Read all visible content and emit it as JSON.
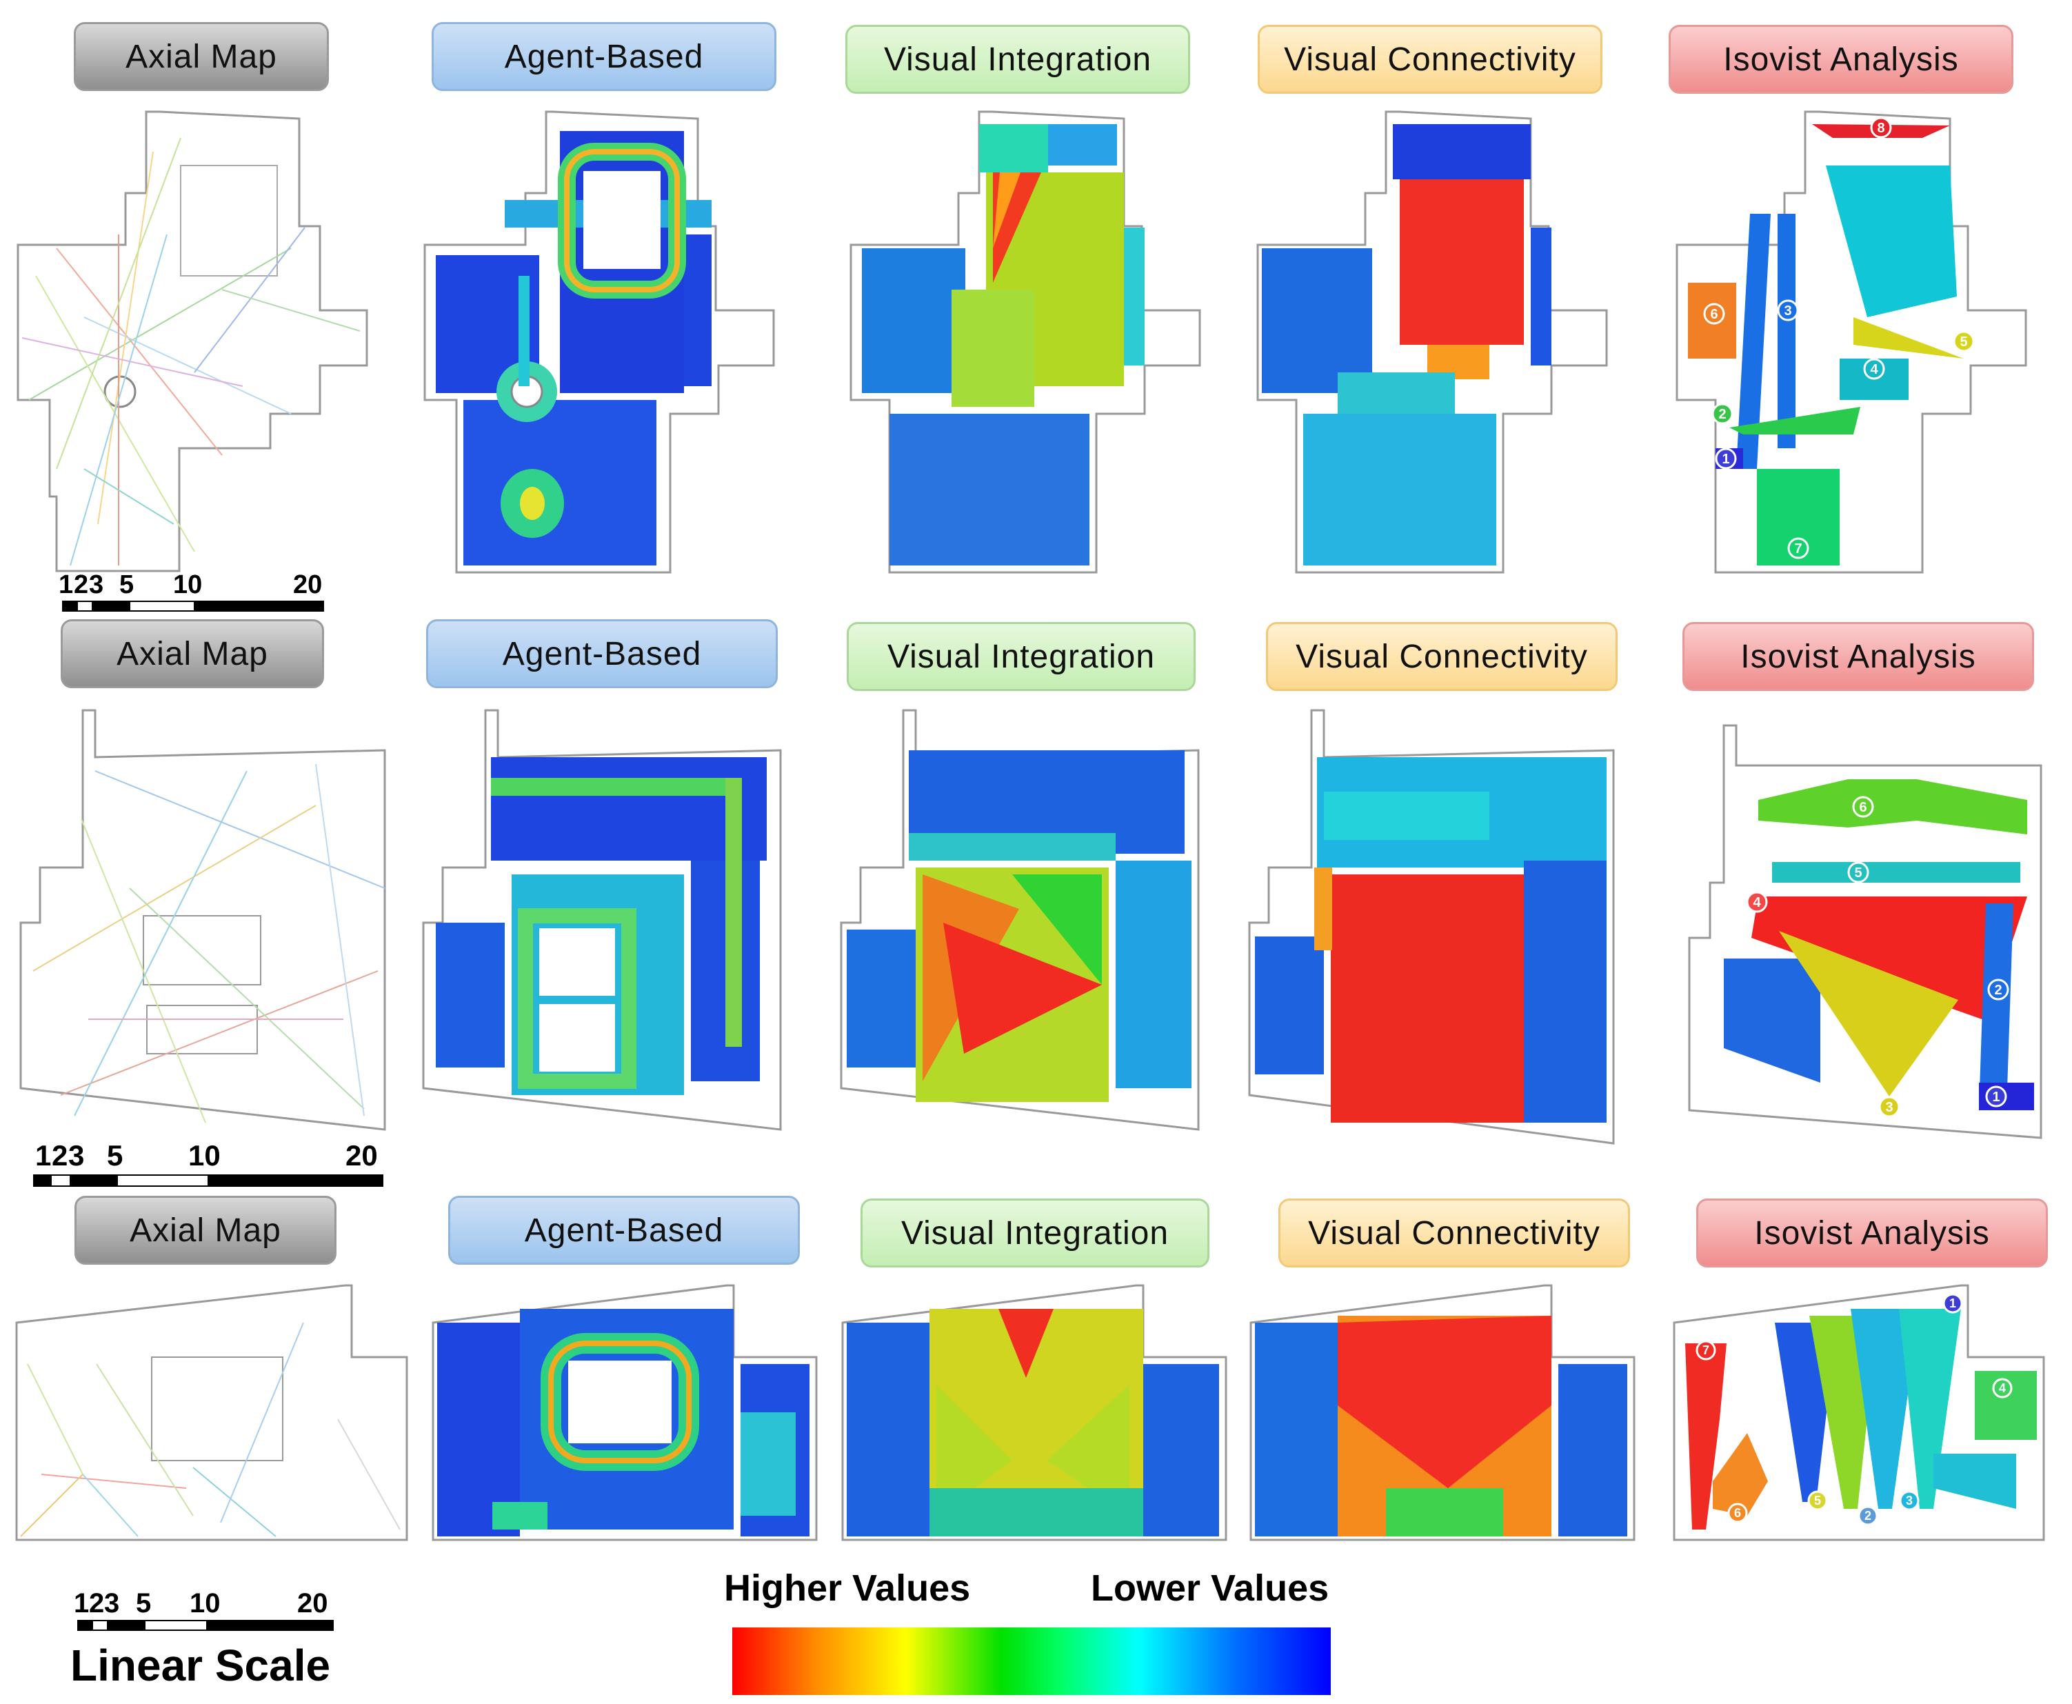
{
  "rows": [
    {
      "row": "1",
      "labels": [
        "Axial Map",
        "Agent-Based",
        "Visual Integration",
        "Visual Connectivity",
        "Isovist Analysis"
      ],
      "isovist_numbers": [
        "1",
        "2",
        "3",
        "4",
        "5",
        "6",
        "7",
        "8"
      ]
    },
    {
      "row": "2",
      "labels": [
        "Axial Map",
        "Agent-Based",
        "Visual Integration",
        "Visual Connectivity",
        "Isovist Analysis"
      ],
      "isovist_numbers": [
        "1",
        "2",
        "3",
        "4",
        "5",
        "6"
      ]
    },
    {
      "row": "3",
      "labels": [
        "Axial Map",
        "Agent-Based",
        "Visual Integration",
        "Visual Connectivity",
        "Isovist Analysis"
      ],
      "isovist_numbers": [
        "1",
        "2",
        "3",
        "4",
        "5",
        "6",
        "7"
      ]
    }
  ],
  "scale": {
    "ticks": [
      "1",
      "2",
      "3",
      "5",
      "10",
      "20"
    ],
    "title": "Linear Scale"
  },
  "legend": {
    "higher": "Higher Values",
    "lower": "Lower Values",
    "colors": [
      "#ff0000",
      "#ff8c00",
      "#ffff00",
      "#00e000",
      "#00ffff",
      "#0070ff",
      "#0000ff"
    ]
  }
}
